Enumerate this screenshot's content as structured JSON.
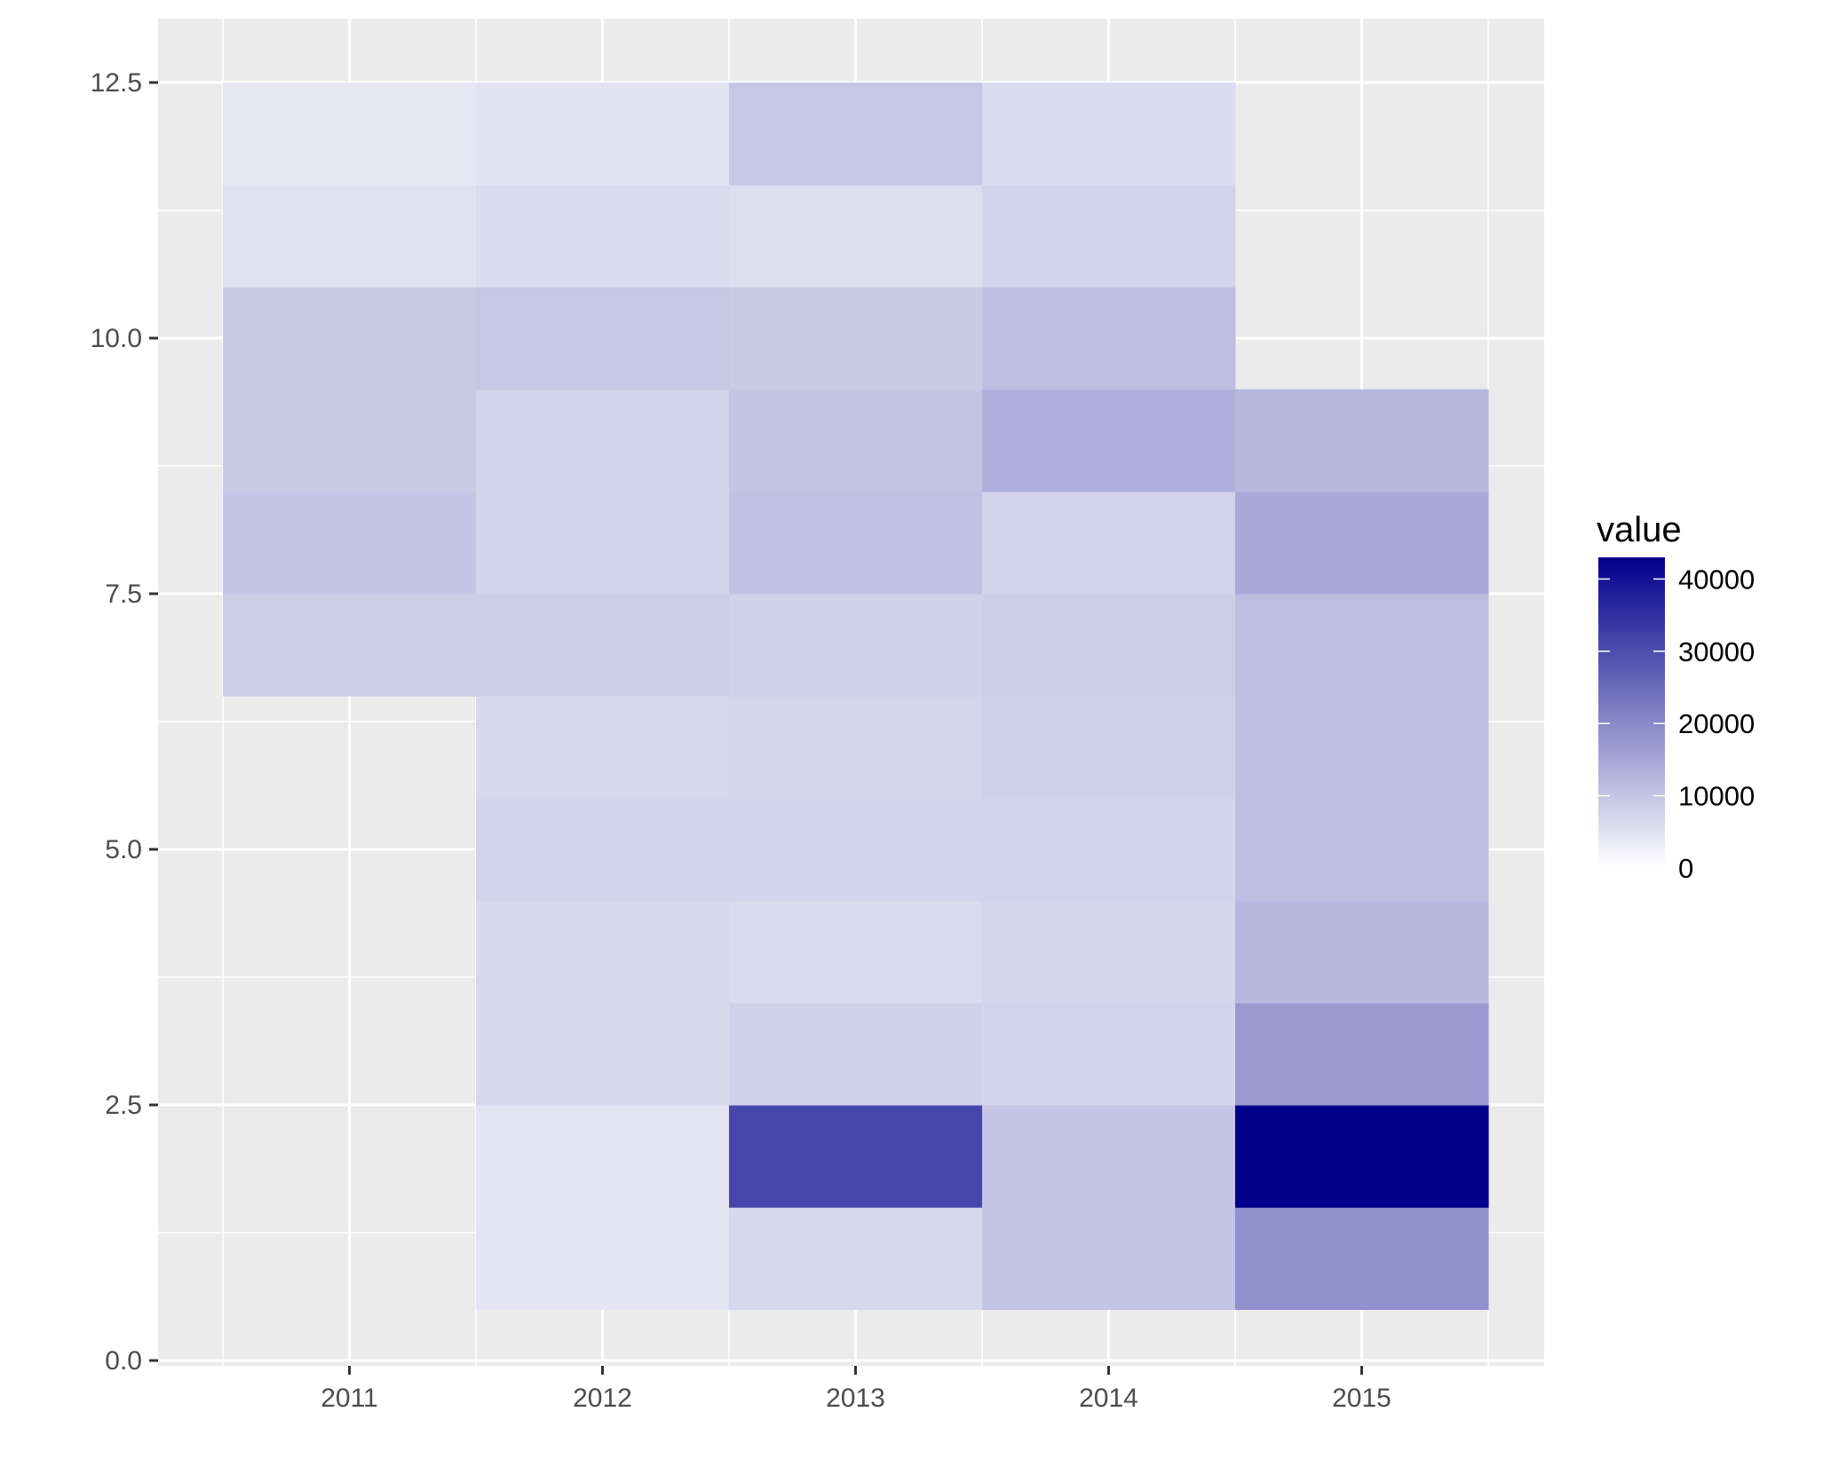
{
  "chart_data": {
    "type": "heatmap",
    "title": "",
    "xlabel": "",
    "ylabel": "",
    "x_categories": [
      "2011",
      "2012",
      "2013",
      "2014",
      "2015"
    ],
    "y_values": [
      1,
      2,
      3,
      4,
      5,
      6,
      7,
      8,
      9,
      10,
      11,
      12
    ],
    "ylim": [
      0,
      13.2
    ],
    "y_ticks": [
      "0.0",
      "2.5",
      "5.0",
      "7.5",
      "10.0",
      "12.5"
    ],
    "grid": true,
    "legend": {
      "title": "value",
      "placement": "right",
      "min": 0,
      "max": 43000,
      "low_color": "#ffffff",
      "high_color": "#00008b",
      "ticks": [
        "0",
        "10000",
        "20000",
        "30000",
        "40000"
      ]
    },
    "cells": [
      {
        "x": "2011",
        "y": 7,
        "value": 8500
      },
      {
        "x": "2011",
        "y": 8,
        "value": 10000
      },
      {
        "x": "2011",
        "y": 9,
        "value": 9000
      },
      {
        "x": "2011",
        "y": 10,
        "value": 9000
      },
      {
        "x": "2011",
        "y": 11,
        "value": 5000
      },
      {
        "x": "2011",
        "y": 12,
        "value": 4000
      },
      {
        "x": "2012",
        "y": 1,
        "value": 4500
      },
      {
        "x": "2012",
        "y": 2,
        "value": 4500
      },
      {
        "x": "2012",
        "y": 3,
        "value": 6500
      },
      {
        "x": "2012",
        "y": 4,
        "value": 6500
      },
      {
        "x": "2012",
        "y": 5,
        "value": 7500
      },
      {
        "x": "2012",
        "y": 6,
        "value": 6500
      },
      {
        "x": "2012",
        "y": 7,
        "value": 8500
      },
      {
        "x": "2012",
        "y": 8,
        "value": 7500
      },
      {
        "x": "2012",
        "y": 9,
        "value": 7500
      },
      {
        "x": "2012",
        "y": 10,
        "value": 9500
      },
      {
        "x": "2012",
        "y": 11,
        "value": 6000
      },
      {
        "x": "2012",
        "y": 12,
        "value": 5000
      },
      {
        "x": "2013",
        "y": 1,
        "value": 6500
      },
      {
        "x": "2013",
        "y": 2,
        "value": 31000
      },
      {
        "x": "2013",
        "y": 3,
        "value": 8000
      },
      {
        "x": "2013",
        "y": 4,
        "value": 6000
      },
      {
        "x": "2013",
        "y": 5,
        "value": 7500
      },
      {
        "x": "2013",
        "y": 6,
        "value": 7000
      },
      {
        "x": "2013",
        "y": 7,
        "value": 8000
      },
      {
        "x": "2013",
        "y": 8,
        "value": 10500
      },
      {
        "x": "2013",
        "y": 9,
        "value": 10000
      },
      {
        "x": "2013",
        "y": 10,
        "value": 9000
      },
      {
        "x": "2013",
        "y": 11,
        "value": 5500
      },
      {
        "x": "2013",
        "y": 12,
        "value": 9500
      },
      {
        "x": "2014",
        "y": 1,
        "value": 10000
      },
      {
        "x": "2014",
        "y": 2,
        "value": 10000
      },
      {
        "x": "2014",
        "y": 3,
        "value": 7500
      },
      {
        "x": "2014",
        "y": 4,
        "value": 7000
      },
      {
        "x": "2014",
        "y": 5,
        "value": 7500
      },
      {
        "x": "2014",
        "y": 6,
        "value": 8000
      },
      {
        "x": "2014",
        "y": 7,
        "value": 8500
      },
      {
        "x": "2014",
        "y": 8,
        "value": 7500
      },
      {
        "x": "2014",
        "y": 9,
        "value": 13500
      },
      {
        "x": "2014",
        "y": 10,
        "value": 11000
      },
      {
        "x": "2014",
        "y": 11,
        "value": 7500
      },
      {
        "x": "2014",
        "y": 12,
        "value": 6000
      },
      {
        "x": "2015",
        "y": 1,
        "value": 18500
      },
      {
        "x": "2015",
        "y": 2,
        "value": 43000
      },
      {
        "x": "2015",
        "y": 3,
        "value": 17000
      },
      {
        "x": "2015",
        "y": 4,
        "value": 12000
      },
      {
        "x": "2015",
        "y": 5,
        "value": 11000
      },
      {
        "x": "2015",
        "y": 6,
        "value": 11000
      },
      {
        "x": "2015",
        "y": 7,
        "value": 11000
      },
      {
        "x": "2015",
        "y": 8,
        "value": 14500
      },
      {
        "x": "2015",
        "y": 9,
        "value": 12000
      }
    ]
  }
}
